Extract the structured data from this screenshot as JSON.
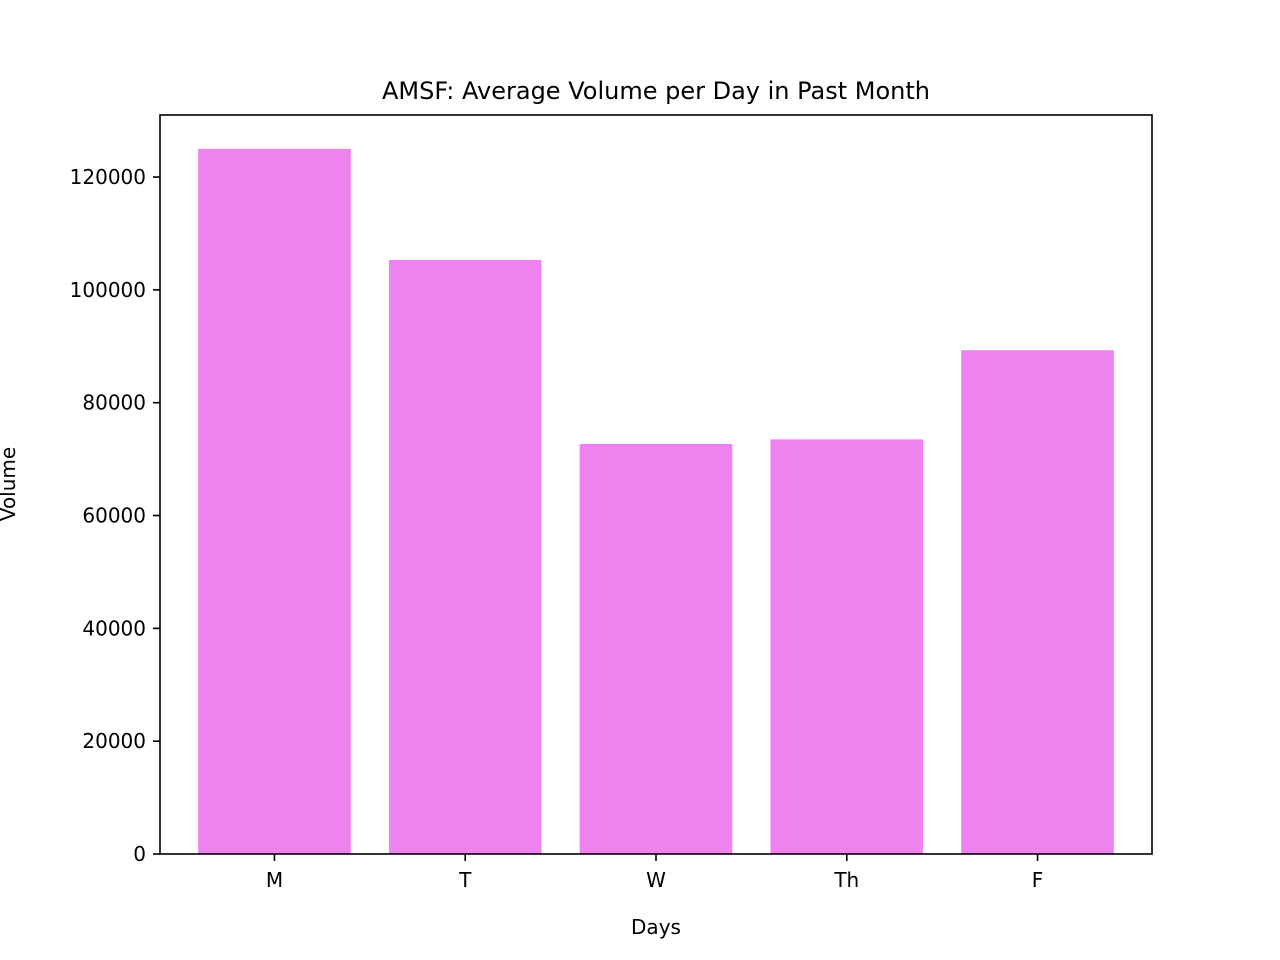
{
  "chart_data": {
    "type": "bar",
    "title": "AMSF: Average Volume per Day in Past Month",
    "xlabel": "Days",
    "ylabel": "Volume",
    "categories": [
      "M",
      "T",
      "W",
      "Th",
      "F"
    ],
    "values": [
      125000,
      105300,
      72700,
      73500,
      89300
    ],
    "ylim": [
      0,
      131000
    ],
    "yticks": [
      0,
      20000,
      40000,
      60000,
      80000,
      100000,
      120000
    ],
    "ytick_labels": [
      "0",
      "20000",
      "40000",
      "60000",
      "80000",
      "100000",
      "120000"
    ],
    "bar_color": "#ee82ee",
    "grid": false,
    "legend": "none"
  }
}
